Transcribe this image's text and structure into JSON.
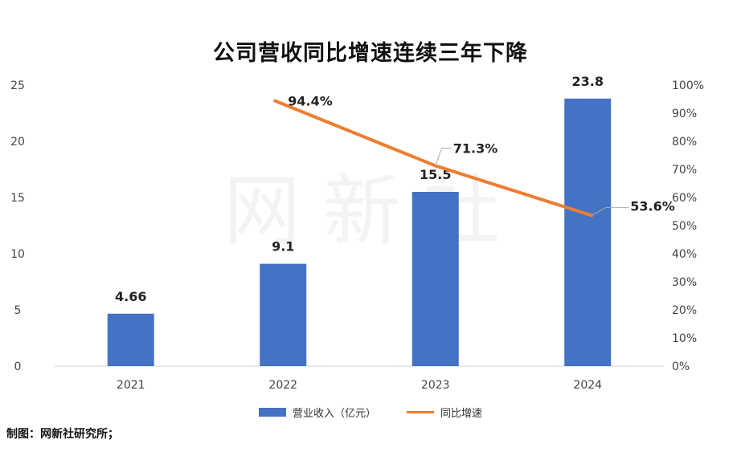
{
  "chart_data": {
    "type": "bar",
    "title": "公司营收同比增速连续三年下降",
    "categories": [
      "2021",
      "2022",
      "2023",
      "2024"
    ],
    "series": [
      {
        "name": "营业收入（亿元）",
        "type": "bar",
        "axis": "left",
        "color": "#4472C4",
        "values": [
          4.66,
          9.1,
          15.5,
          23.8
        ],
        "labels": [
          "4.66",
          "9.1",
          "15.5",
          "23.8"
        ]
      },
      {
        "name": "同比增速",
        "type": "line",
        "axis": "right",
        "color": "#ED7D31",
        "values": [
          null,
          94.4,
          71.3,
          53.6
        ],
        "labels": [
          "",
          "94.4%",
          "71.3%",
          "53.6%"
        ]
      }
    ],
    "y_left": {
      "ylim": [
        0,
        25
      ],
      "ticks": [
        "0",
        "5",
        "10",
        "15",
        "20",
        "25"
      ]
    },
    "y_right": {
      "ylim": [
        0,
        100
      ],
      "ticks": [
        "0%",
        "10%",
        "20%",
        "30%",
        "40%",
        "50%",
        "60%",
        "70%",
        "80%",
        "90%",
        "100%"
      ]
    },
    "grid": false,
    "legend": "bottom"
  },
  "watermark": "网新社",
  "source_note": "制图：网新社研究所；"
}
